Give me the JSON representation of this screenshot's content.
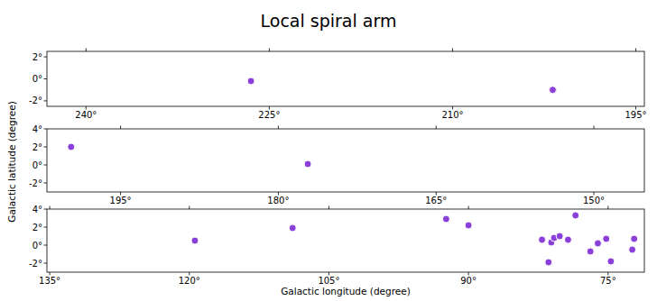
{
  "chart_data": [
    {
      "type": "scatter",
      "title": "Local spiral arm",
      "color": "#8a3fd8",
      "marker": "circle",
      "grid": false,
      "x": [
        226.5,
        201.8
      ],
      "values": [
        -0.2,
        -1.0
      ],
      "xlim": [
        243.2,
        194.3
      ],
      "ylim": [
        -2.5,
        2.5
      ],
      "xticks": [
        {
          "value": 240,
          "label": "240°"
        },
        {
          "value": 225,
          "label": "225°"
        },
        {
          "value": 210,
          "label": "210°"
        },
        {
          "value": 195,
          "label": "195°"
        }
      ],
      "yticks": [
        {
          "value": -2,
          "label": "-2°"
        },
        {
          "value": 0,
          "label": "0°"
        },
        {
          "value": 2,
          "label": "2°"
        }
      ]
    },
    {
      "type": "scatter",
      "y_label": "Galactic latitude (degree)",
      "color": "#8a3fd8",
      "marker": "circle",
      "grid": false,
      "x": [
        199.7,
        177.2
      ],
      "values": [
        2.0,
        0.1
      ],
      "xlim": [
        202,
        145.2
      ],
      "ylim": [
        -3,
        4
      ],
      "xticks": [
        {
          "value": 195,
          "label": "195°"
        },
        {
          "value": 180,
          "label": "180°"
        },
        {
          "value": 165,
          "label": "165°"
        },
        {
          "value": 150,
          "label": "150°"
        }
      ],
      "yticks": [
        {
          "value": -2,
          "label": "-2°"
        },
        {
          "value": 0,
          "label": "0°"
        },
        {
          "value": 2,
          "label": "2°"
        },
        {
          "value": 4,
          "label": "4°"
        }
      ]
    },
    {
      "type": "scatter",
      "x_label": "Galactic longitude (degree)",
      "color": "#8a3fd8",
      "marker": "circle",
      "grid": false,
      "x": [
        119.4,
        108.9,
        92.4,
        90.0,
        82.1,
        81.1,
        80.8,
        80.2,
        79.3,
        78.5,
        81.4,
        76.9,
        76.1,
        75.2,
        74.7,
        72.2,
        72.4
      ],
      "values": [
        0.5,
        1.9,
        2.9,
        2.2,
        0.6,
        0.3,
        0.8,
        1.0,
        0.6,
        3.3,
        -1.9,
        -0.7,
        0.2,
        0.7,
        -1.8,
        0.7,
        -0.5
      ],
      "xlim": [
        135.3,
        71.1
      ],
      "ylim": [
        -3,
        4
      ],
      "xticks": [
        {
          "value": 135,
          "label": "135°"
        },
        {
          "value": 120,
          "label": "120°"
        },
        {
          "value": 105,
          "label": "105°"
        },
        {
          "value": 90,
          "label": "90°"
        },
        {
          "value": 75,
          "label": "75°"
        }
      ],
      "yticks": [
        {
          "value": -2,
          "label": "-2°"
        },
        {
          "value": 0,
          "label": "0°"
        },
        {
          "value": 2,
          "label": "2°"
        },
        {
          "value": 4,
          "label": "4°"
        }
      ]
    }
  ]
}
